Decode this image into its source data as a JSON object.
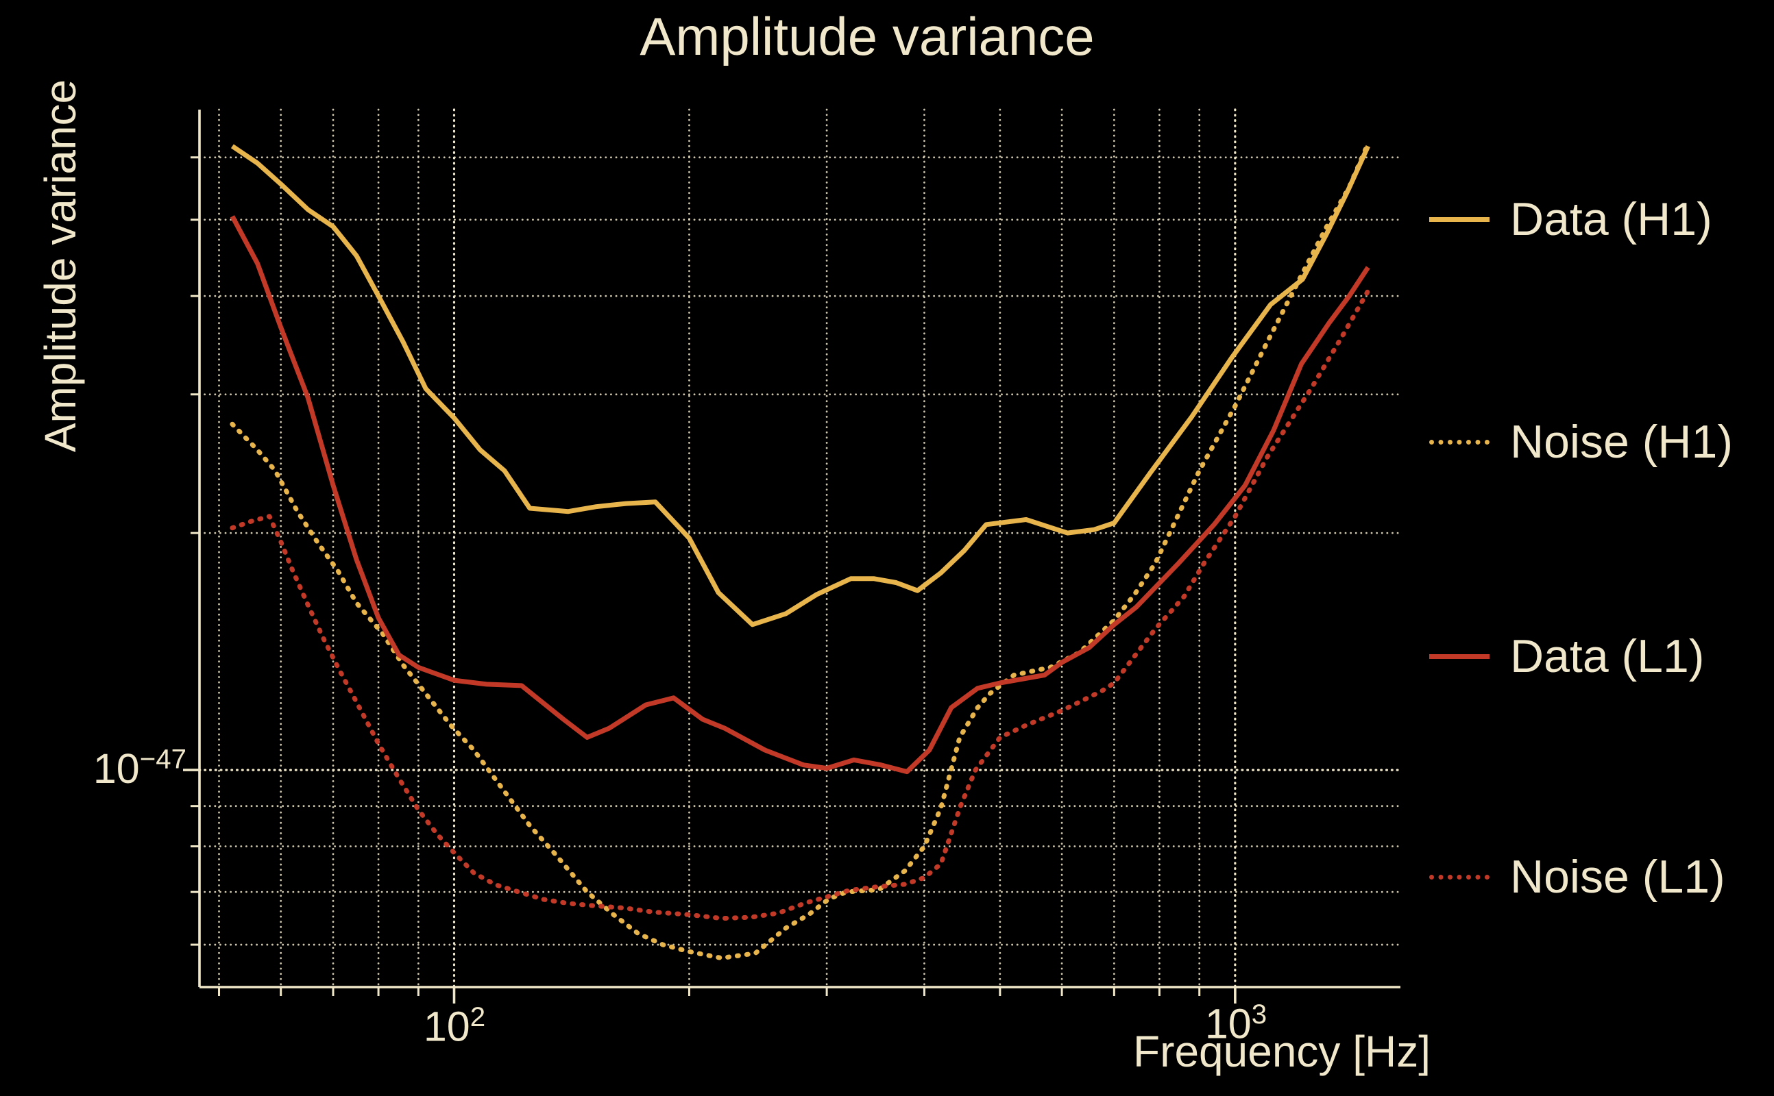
{
  "title": "Amplitude variance",
  "colors": {
    "background": "#000000",
    "text": "#F1E8CB",
    "grid": "#F0E7C9",
    "gold": "#E8B44C",
    "red": "#C23A27"
  },
  "x_axis": {
    "label": "Frequency [Hz]",
    "scale": "log",
    "lim": [
      47.2,
      1628
    ],
    "ticks": [
      {
        "base": "10",
        "exp": "2",
        "value": 100
      },
      {
        "base": "10",
        "exp": "3",
        "value": 1000
      }
    ],
    "minor_ticks": [
      50,
      60,
      70,
      80,
      90,
      200,
      300,
      400,
      500,
      600,
      700,
      800,
      900
    ]
  },
  "y_axis": {
    "label": "Amplitude variance",
    "scale": "log",
    "lim": [
      5.3e-48,
      6.9e-47
    ],
    "ticks": [
      {
        "base": "10",
        "exp": "−47",
        "value": 1e-47
      }
    ],
    "minor_ticks": [
      6e-48,
      7e-48,
      8e-48,
      9e-48,
      2e-47,
      3e-47,
      4e-47,
      5e-47,
      6e-47
    ]
  },
  "chart_data": {
    "type": "line",
    "xscale": "log",
    "yscale": "log",
    "grid": "dotted",
    "legend_position": "right-outside",
    "series": [
      {
        "name": "Data (H1)",
        "color": "#E8B44C",
        "line_style": "solid",
        "f": [
          52,
          56,
          60,
          65,
          70,
          75,
          80,
          86,
          92,
          100,
          108,
          116,
          125,
          140,
          152,
          166,
          181,
          200,
          218,
          241,
          266,
          291,
          322,
          345,
          368,
          392,
          420,
          450,
          480,
          540,
          610,
          660,
          700,
          780,
          880,
          990,
          1110,
          1220,
          1310,
          1395,
          1480
        ],
        "v": [
          6.2e-47,
          5.9e-47,
          5.55e-47,
          5.15e-47,
          4.9e-47,
          4.5e-47,
          4e-47,
          3.5e-47,
          3.05e-47,
          2.8e-47,
          2.55e-47,
          2.4e-47,
          2.15e-47,
          2.13e-47,
          2.16e-47,
          2.18e-47,
          2.19e-47,
          1.97e-47,
          1.68e-47,
          1.53e-47,
          1.58e-47,
          1.67e-47,
          1.75e-47,
          1.75e-47,
          1.73e-47,
          1.69e-47,
          1.78e-47,
          1.9e-47,
          2.05e-47,
          2.08e-47,
          2e-47,
          2.02e-47,
          2.06e-47,
          2.39e-47,
          2.81e-47,
          3.34e-47,
          3.9e-47,
          4.2e-47,
          4.8e-47,
          5.45e-47,
          6.2e-47
        ]
      },
      {
        "name": "Noise (H1)",
        "color": "#E8B44C",
        "line_style": "dotted",
        "f": [
          52,
          56,
          59,
          63,
          67,
          71,
          75,
          81,
          86,
          92,
          99,
          106,
          115,
          125,
          135,
          148,
          160,
          172,
          185,
          200,
          220,
          243,
          266,
          285,
          302,
          318,
          350,
          378,
          400,
          420,
          444,
          468,
          485,
          521,
          580,
          632,
          700,
          743,
          790,
          900,
          1000,
          1100,
          1216,
          1310,
          1400,
          1480
        ],
        "v": [
          2.75e-47,
          2.55e-47,
          2.4e-47,
          2.13e-47,
          1.94e-47,
          1.79e-47,
          1.63e-47,
          1.49e-47,
          1.36e-47,
          1.25e-47,
          1.14e-47,
          1.06e-47,
          9.5e-48,
          8.5e-48,
          7.8e-48,
          7e-48,
          6.55e-48,
          6.2e-48,
          6e-48,
          5.88e-48,
          5.77e-48,
          5.85e-48,
          6.3e-48,
          6.56e-48,
          6.86e-48,
          7e-48,
          7.05e-48,
          7.45e-48,
          8e-48,
          8.95e-48,
          1.1e-47,
          1.2e-47,
          1.25e-47,
          1.32e-47,
          1.35e-47,
          1.41e-47,
          1.55e-47,
          1.67e-47,
          1.83e-47,
          2.4e-47,
          2.9e-47,
          3.5e-47,
          4.25e-47,
          4.9e-47,
          5.5e-47,
          6.25e-47
        ]
      },
      {
        "name": "Data (L1)",
        "color": "#C23A27",
        "line_style": "solid",
        "f": [
          52,
          56,
          60,
          65,
          70,
          75,
          80,
          85,
          90,
          100,
          110,
          122,
          138,
          148,
          158,
          176,
          191,
          208,
          222,
          250,
          280,
          300,
          325,
          352,
          380,
          406,
          433,
          468,
          500,
          570,
          600,
          650,
          700,
          747,
          846,
          940,
          1030,
          1120,
          1216,
          1320,
          1400,
          1480
        ],
        "v": [
          5.05e-47,
          4.4e-47,
          3.65e-47,
          2.97e-47,
          2.3e-47,
          1.85e-47,
          1.56e-47,
          1.4e-47,
          1.35e-47,
          1.3e-47,
          1.285e-47,
          1.28e-47,
          1.16e-47,
          1.1e-47,
          1.13e-47,
          1.21e-47,
          1.235e-47,
          1.16e-47,
          1.13e-47,
          1.06e-47,
          1.015e-47,
          1.005e-47,
          1.03e-47,
          1.015e-47,
          9.95e-48,
          1.06e-47,
          1.2e-47,
          1.27e-47,
          1.29e-47,
          1.32e-47,
          1.37e-47,
          1.43e-47,
          1.53e-47,
          1.61e-47,
          1.83e-47,
          2.05e-47,
          2.3e-47,
          2.7e-47,
          3.28e-47,
          3.7e-47,
          4e-47,
          4.35e-47
        ]
      },
      {
        "name": "Noise (L1)",
        "color": "#C23A27",
        "line_style": "dotted",
        "f": [
          52,
          55,
          58,
          60,
          62,
          65,
          68,
          71,
          75,
          80,
          85,
          90,
          95,
          100,
          106,
          113,
          121,
          130,
          140,
          152,
          165,
          180,
          200,
          220,
          240,
          260,
          282,
          300,
          320,
          345,
          378,
          400,
          420,
          445,
          465,
          500,
          540,
          600,
          675,
          700,
          790,
          860,
          912,
          1000,
          1100,
          1253,
          1370,
          1480
        ],
        "v": [
          2.03e-47,
          2.07e-47,
          2.1e-47,
          1.95e-47,
          1.8e-47,
          1.62e-47,
          1.47e-47,
          1.35e-47,
          1.22e-47,
          1.08e-47,
          9.75e-48,
          8.9e-48,
          8.3e-48,
          7.85e-48,
          7.4e-48,
          7.15e-48,
          7e-48,
          6.85e-48,
          6.77e-48,
          6.72e-48,
          6.68e-48,
          6.6e-48,
          6.55e-48,
          6.48e-48,
          6.5e-48,
          6.58e-48,
          6.78e-48,
          6.9e-48,
          7.03e-48,
          7.1e-48,
          7.16e-48,
          7.3e-48,
          7.6e-48,
          9e-48,
          1e-47,
          1.1e-47,
          1.14e-47,
          1.19e-47,
          1.26e-47,
          1.29e-47,
          1.51e-47,
          1.66e-47,
          1.83e-47,
          2.1e-47,
          2.5e-47,
          3.06e-47,
          3.55e-47,
          4.06e-47
        ]
      }
    ]
  }
}
